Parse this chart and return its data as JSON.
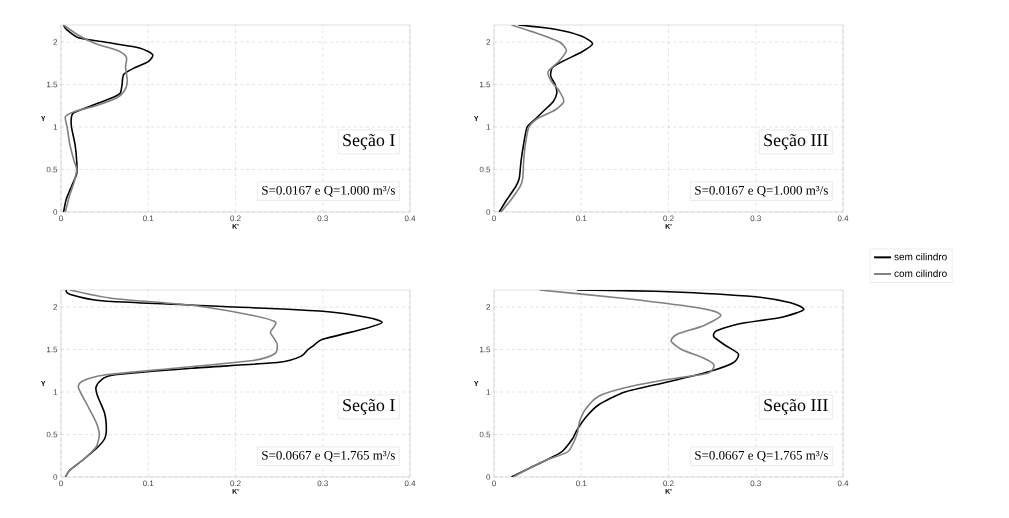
{
  "chart_data": [
    {
      "type": "line",
      "xlabel": "K'",
      "ylabel": "Y",
      "xlim": [
        0,
        0.4
      ],
      "ylim": [
        0,
        2.2
      ],
      "xticks": [
        0,
        0.1,
        0.2,
        0.3,
        0.4
      ],
      "yticks": [
        0,
        0.5,
        1,
        1.5,
        2
      ],
      "grid": true,
      "annotations": [
        "Seção I",
        "S=0.0167 e Q=1.000 m³/s"
      ],
      "series": [
        {
          "color": "#000000",
          "x": [
            0.003,
            0.006,
            0.02,
            0.05,
            0.09,
            0.105,
            0.1,
            0.085,
            0.072,
            0.07,
            0.068,
            0.06,
            0.035,
            0.015,
            0.012,
            0.012,
            0.016,
            0.018,
            0.018,
            0.012,
            0.006,
            0.003
          ],
          "values": [
            2.2,
            2.15,
            2.05,
            2.0,
            1.93,
            1.85,
            1.77,
            1.7,
            1.62,
            1.5,
            1.4,
            1.35,
            1.25,
            1.17,
            1.12,
            1.0,
            0.8,
            0.6,
            0.45,
            0.3,
            0.15,
            0
          ]
        },
        {
          "color": "#808080",
          "x": [
            0.003,
            0.02,
            0.04,
            0.065,
            0.075,
            0.074,
            0.076,
            0.074,
            0.065,
            0.04,
            0.015,
            0.005,
            0.007,
            0.01,
            0.015,
            0.018,
            0.015,
            0.01,
            0.005
          ],
          "values": [
            2.2,
            2.08,
            1.98,
            1.9,
            1.82,
            1.7,
            1.55,
            1.45,
            1.35,
            1.25,
            1.18,
            1.12,
            1.0,
            0.8,
            0.6,
            0.5,
            0.35,
            0.2,
            0
          ]
        }
      ]
    },
    {
      "type": "line",
      "xlabel": "K'",
      "ylabel": "Y",
      "xlim": [
        0,
        0.4
      ],
      "ylim": [
        0,
        2.2
      ],
      "xticks": [
        0,
        0.1,
        0.2,
        0.3,
        0.4
      ],
      "yticks": [
        0,
        0.5,
        1,
        1.5,
        2
      ],
      "grid": true,
      "annotations": [
        "Seção III",
        "S=0.0167 e Q=1.000 m³/s"
      ],
      "series": [
        {
          "color": "#000000",
          "x": [
            0.028,
            0.07,
            0.1,
            0.113,
            0.1,
            0.08,
            0.067,
            0.065,
            0.07,
            0.072,
            0.068,
            0.058,
            0.048,
            0.038,
            0.034,
            0.031,
            0.029,
            0.025,
            0.015,
            0.006
          ],
          "values": [
            2.2,
            2.15,
            2.07,
            1.98,
            1.88,
            1.78,
            1.7,
            1.6,
            1.5,
            1.4,
            1.3,
            1.2,
            1.1,
            1.0,
            0.8,
            0.6,
            0.4,
            0.3,
            0.15,
            0
          ]
        },
        {
          "color": "#808080",
          "x": [
            0.02,
            0.05,
            0.075,
            0.083,
            0.075,
            0.062,
            0.065,
            0.075,
            0.08,
            0.07,
            0.05,
            0.04,
            0.036,
            0.034,
            0.033,
            0.03,
            0.02,
            0.008
          ],
          "values": [
            2.2,
            2.1,
            2.0,
            1.9,
            1.78,
            1.65,
            1.55,
            1.42,
            1.3,
            1.2,
            1.1,
            1.0,
            0.8,
            0.6,
            0.4,
            0.3,
            0.15,
            0
          ]
        }
      ]
    },
    {
      "type": "line",
      "xlabel": "K'",
      "ylabel": "Y",
      "xlim": [
        0,
        0.4
      ],
      "ylim": [
        0,
        2.2
      ],
      "xticks": [
        0,
        0.1,
        0.2,
        0.3,
        0.4
      ],
      "yticks": [
        0,
        0.5,
        1,
        1.5,
        2
      ],
      "grid": true,
      "annotations": [
        "Seção I",
        "S=0.0667 e Q=1.765 m³/s"
      ],
      "series": [
        {
          "color": "#000000",
          "x": [
            0.006,
            0.01,
            0.05,
            0.2,
            0.3,
            0.35,
            0.368,
            0.35,
            0.3,
            0.29,
            0.283,
            0.275,
            0.25,
            0.15,
            0.06,
            0.045,
            0.04,
            0.042,
            0.05,
            0.052,
            0.05,
            0.042,
            0.025,
            0.01,
            0.005
          ],
          "values": [
            2.2,
            2.15,
            2.07,
            2.0,
            1.95,
            1.88,
            1.82,
            1.75,
            1.62,
            1.55,
            1.5,
            1.42,
            1.35,
            1.28,
            1.2,
            1.13,
            1.05,
            0.95,
            0.75,
            0.55,
            0.45,
            0.35,
            0.2,
            0.08,
            0
          ]
        },
        {
          "color": "#808080",
          "x": [
            0.01,
            0.06,
            0.15,
            0.22,
            0.245,
            0.245,
            0.24,
            0.245,
            0.248,
            0.245,
            0.22,
            0.13,
            0.05,
            0.025,
            0.02,
            0.03,
            0.04,
            0.044,
            0.04,
            0.025,
            0.01,
            0.005
          ],
          "values": [
            2.2,
            2.1,
            2.02,
            1.9,
            1.83,
            1.78,
            1.7,
            1.62,
            1.55,
            1.45,
            1.37,
            1.28,
            1.2,
            1.13,
            1.05,
            0.85,
            0.65,
            0.5,
            0.35,
            0.2,
            0.08,
            0
          ]
        }
      ]
    },
    {
      "type": "line",
      "xlabel": "K'",
      "ylabel": "Y",
      "xlim": [
        0,
        0.4
      ],
      "ylim": [
        0,
        2.2
      ],
      "xticks": [
        0,
        0.1,
        0.2,
        0.3,
        0.4
      ],
      "yticks": [
        0,
        0.5,
        1,
        1.5,
        2
      ],
      "grid": true,
      "legend": "right",
      "annotations": [
        "Seção III",
        "S=0.0667 e Q=1.765 m³/s"
      ],
      "series": [
        {
          "name": "sem cilindro",
          "color": "#000000",
          "x": [
            0.095,
            0.2,
            0.3,
            0.34,
            0.355,
            0.33,
            0.28,
            0.255,
            0.252,
            0.265,
            0.28,
            0.275,
            0.25,
            0.2,
            0.15,
            0.12,
            0.105,
            0.095,
            0.09,
            0.078,
            0.06,
            0.04,
            0.02
          ],
          "values": [
            2.2,
            2.18,
            2.12,
            2.05,
            1.97,
            1.88,
            1.8,
            1.72,
            1.65,
            1.55,
            1.45,
            1.35,
            1.25,
            1.12,
            1.0,
            0.85,
            0.7,
            0.55,
            0.45,
            0.3,
            0.2,
            0.1,
            0
          ]
        },
        {
          "name": "com cilindro",
          "color": "#808080",
          "x": [
            0.052,
            0.15,
            0.24,
            0.26,
            0.24,
            0.21,
            0.203,
            0.215,
            0.24,
            0.252,
            0.245,
            0.2,
            0.15,
            0.12,
            0.105,
            0.098,
            0.095,
            0.085,
            0.06,
            0.04,
            0.022
          ],
          "values": [
            2.2,
            2.1,
            1.98,
            1.9,
            1.78,
            1.68,
            1.6,
            1.5,
            1.4,
            1.32,
            1.22,
            1.15,
            1.05,
            0.95,
            0.8,
            0.65,
            0.5,
            0.3,
            0.2,
            0.1,
            0
          ]
        }
      ]
    }
  ]
}
